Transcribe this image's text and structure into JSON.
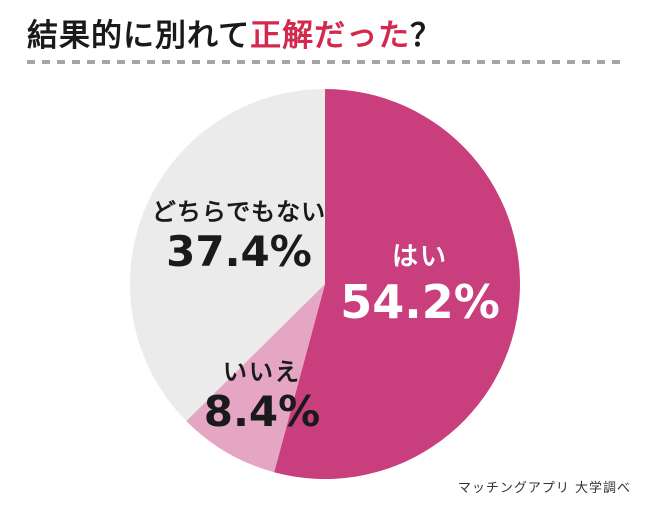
{
  "title": {
    "prefix": "結果的に別れて",
    "highlight": "正解だった",
    "suffix": "？"
  },
  "colors": {
    "title_text": "#1a1a1a",
    "title_highlight": "#d12a4d",
    "divider": "#a5a5a5",
    "background": "#ffffff",
    "caption_text": "#333333"
  },
  "chart_data": {
    "type": "pie",
    "title": "結果的に別れて正解だった？",
    "start_angle_deg": -90,
    "direction": "clockwise",
    "legend_position": "none",
    "slices": [
      {
        "label": "はい",
        "value": 54.2,
        "display_value": "54.2%",
        "color": "#c93f7d",
        "label_color": "#ffffff"
      },
      {
        "label": "いいえ",
        "value": 8.4,
        "display_value": "8.4%",
        "color": "#e5a6c4",
        "label_color": "#1a1a1a"
      },
      {
        "label": "どちらでもない",
        "value": 37.4,
        "display_value": "37.4%",
        "color": "#ebebeb",
        "label_color": "#1a1a1a"
      }
    ]
  },
  "caption": "マッチングアプリ 大学調べ"
}
